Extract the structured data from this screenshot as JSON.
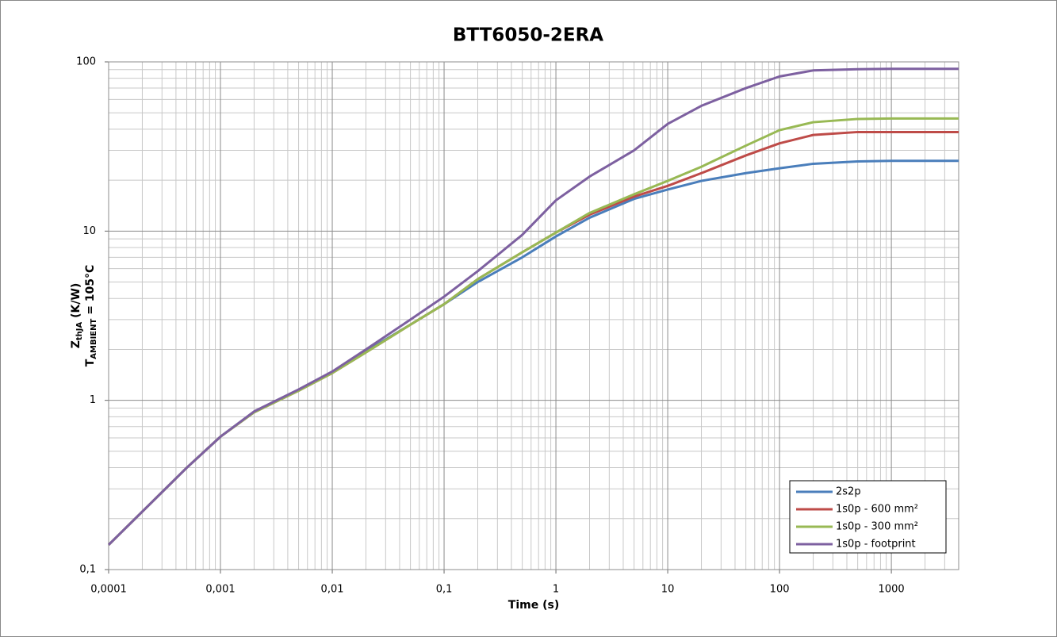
{
  "chart_data": {
    "type": "line",
    "title": "BTT6050-2ERA",
    "x_label": "Time (s)",
    "y_label": {
      "line1": {
        "main": "Z",
        "sub": "thJA",
        "rest": " (K/W)"
      },
      "line2": {
        "main": "T",
        "sub": "AMBIENT",
        "rest": " = 105°C"
      }
    },
    "x": [
      0.0001,
      0.0002,
      0.0005,
      0.001,
      0.002,
      0.005,
      0.01,
      0.02,
      0.05,
      0.1,
      0.2,
      0.5,
      1,
      2,
      5,
      10,
      20,
      50,
      100,
      200,
      500,
      1000,
      2000,
      4000
    ],
    "series": [
      {
        "name": "2s2p",
        "color": "#4a7ebb",
        "values": [
          0.14,
          0.22,
          0.4,
          0.61,
          0.85,
          1.15,
          1.47,
          1.95,
          2.8,
          3.7,
          5.0,
          7.0,
          9.3,
          12,
          15.5,
          17.6,
          19.8,
          22,
          23.5,
          25,
          25.8,
          26,
          26,
          26
        ]
      },
      {
        "name": "1s0p - 600 mm²",
        "color": "#be4b48",
        "values": [
          0.14,
          0.22,
          0.4,
          0.61,
          0.85,
          1.14,
          1.45,
          1.92,
          2.8,
          3.7,
          5.2,
          7.5,
          9.8,
          12.5,
          16,
          18.5,
          22,
          28,
          33,
          37,
          38.5,
          38.5,
          38.5,
          38.5
        ]
      },
      {
        "name": "1s0p - 300 mm²",
        "color": "#98b954",
        "values": [
          0.14,
          0.22,
          0.4,
          0.61,
          0.85,
          1.14,
          1.45,
          1.92,
          2.8,
          3.7,
          5.2,
          7.5,
          9.8,
          12.8,
          16.5,
          19.8,
          24,
          32,
          39.5,
          44,
          46,
          46.3,
          46.3,
          46.3
        ]
      },
      {
        "name": "1s0p - footprint",
        "color": "#7d60a0",
        "values": [
          0.14,
          0.22,
          0.4,
          0.61,
          0.86,
          1.16,
          1.48,
          2.0,
          3.0,
          4.1,
          5.8,
          9.5,
          15.2,
          21,
          30,
          43,
          55,
          70,
          82,
          89,
          90.5,
          91,
          91,
          91
        ]
      }
    ],
    "xlim": [
      0.0001,
      4000
    ],
    "ylim": [
      0.1,
      100
    ],
    "xticks": [
      {
        "value": 0.0001,
        "label": "0,0001"
      },
      {
        "value": 0.001,
        "label": "0,001"
      },
      {
        "value": 0.01,
        "label": "0,01"
      },
      {
        "value": 0.1,
        "label": "0,1"
      },
      1,
      10,
      100,
      1000
    ],
    "yticks": [
      {
        "value": 0.1,
        "label": "0,1"
      },
      1,
      10,
      100
    ],
    "log_x": true,
    "log_y": true,
    "grid": true,
    "minor_grid": true,
    "legend": "lower right"
  }
}
